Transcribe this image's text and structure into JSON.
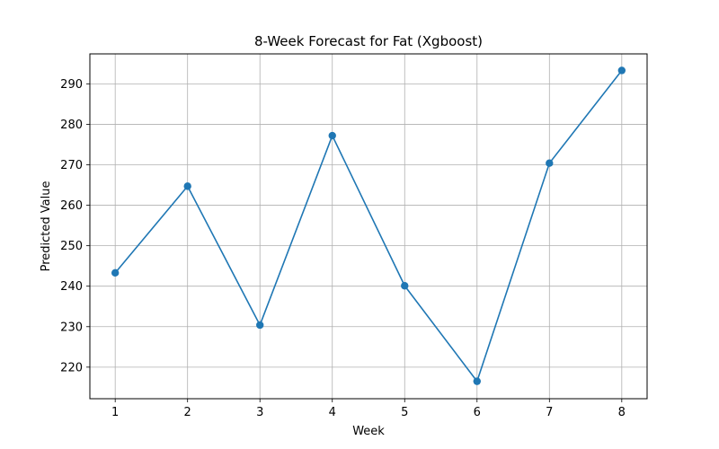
{
  "chart_data": {
    "type": "line",
    "title": "8-Week Forecast for Fat (Xgboost)",
    "xlabel": "Week",
    "ylabel": "Predicted Value",
    "x": [
      1,
      2,
      3,
      4,
      5,
      6,
      7,
      8
    ],
    "series": [
      {
        "values": [
          243.3,
          264.7,
          230.4,
          277.2,
          240.1,
          216.5,
          270.4,
          293.3
        ],
        "color": "#1f77b4",
        "marker": "circle"
      }
    ],
    "xlim": [
      0.65,
      8.35
    ],
    "ylim": [
      212.2,
      297.4
    ],
    "xticks": [
      1,
      2,
      3,
      4,
      5,
      6,
      7,
      8
    ],
    "yticks": [
      220,
      230,
      240,
      250,
      260,
      270,
      280,
      290
    ],
    "grid": true
  }
}
